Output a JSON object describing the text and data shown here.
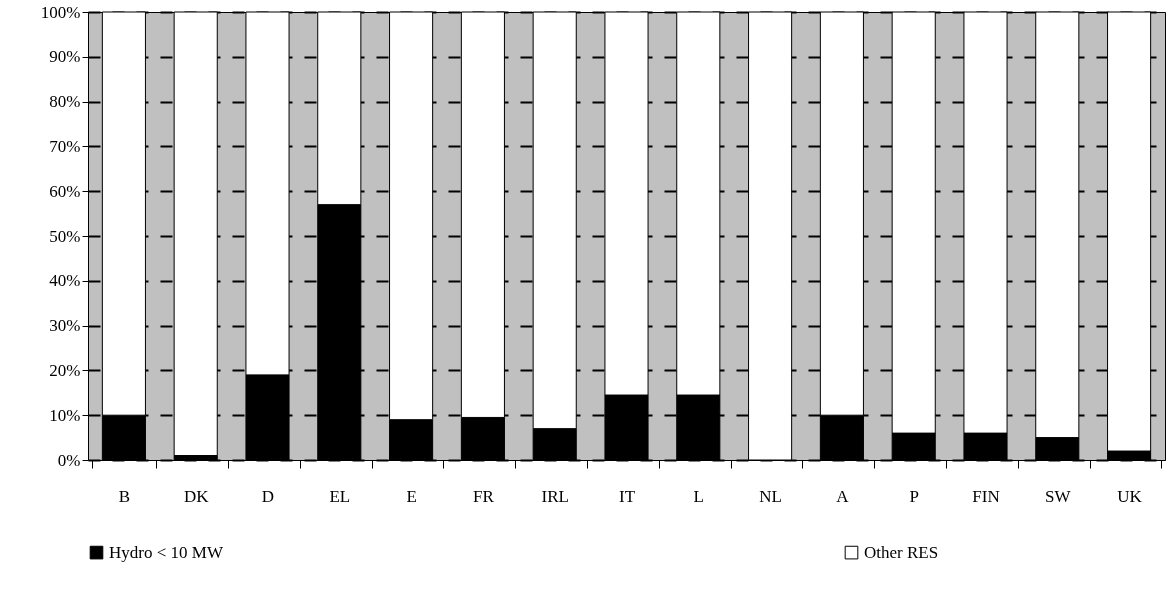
{
  "chart_data": {
    "type": "bar",
    "stacked": true,
    "categories": [
      "B",
      "DK",
      "D",
      "EL",
      "E",
      "FR",
      "IRL",
      "IT",
      "L",
      "NL",
      "A",
      "P",
      "FIN",
      "SW",
      "UK"
    ],
    "series": [
      {
        "name": "Hydro < 10 MW",
        "color": "#000000",
        "values": [
          10,
          1,
          19,
          57,
          9,
          9.5,
          7,
          14.5,
          14.5,
          0,
          10,
          6,
          6,
          5,
          2
        ]
      },
      {
        "name": "Other RES",
        "color": "#ffffff",
        "values": [
          90,
          99,
          81,
          43,
          91,
          90.5,
          93,
          85.5,
          85.5,
          100,
          90,
          94,
          94,
          95,
          98
        ]
      }
    ],
    "ylim": [
      0,
      100
    ],
    "yticks": [
      {
        "value": 0,
        "label": "0%"
      },
      {
        "value": 10,
        "label": "10%"
      },
      {
        "value": 20,
        "label": "20%"
      },
      {
        "value": 30,
        "label": "30%"
      },
      {
        "value": 40,
        "label": "40%"
      },
      {
        "value": 50,
        "label": "50%"
      },
      {
        "value": 60,
        "label": "60%"
      },
      {
        "value": 70,
        "label": "70%"
      },
      {
        "value": 80,
        "label": "80%"
      },
      {
        "value": 90,
        "label": "90%"
      },
      {
        "value": 100,
        "label": "100%"
      }
    ],
    "grid": "y",
    "legend": "bottom"
  }
}
